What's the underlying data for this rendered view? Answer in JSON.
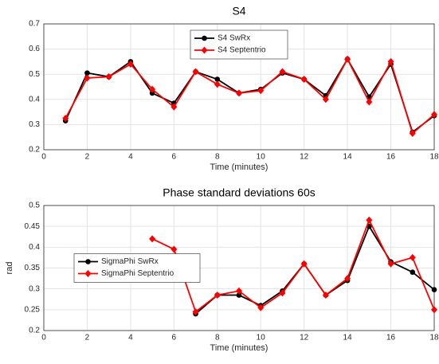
{
  "chart_data": [
    {
      "type": "line",
      "title": "S4",
      "x_label": "Time (minutes)",
      "x": [
        1,
        2,
        3,
        4,
        5,
        6,
        7,
        8,
        9,
        10,
        11,
        12,
        13,
        14,
        15,
        16,
        17,
        18
      ],
      "series": [
        {
          "name": "S4 SwRx",
          "color": "#000000",
          "marker": "circle",
          "values": [
            0.315,
            0.505,
            0.49,
            0.55,
            0.425,
            0.385,
            0.51,
            0.48,
            0.425,
            0.44,
            0.505,
            0.48,
            0.415,
            0.56,
            0.41,
            0.54,
            0.27,
            0.335
          ]
        },
        {
          "name": "S4 Septentrio",
          "color": "#ff0000",
          "marker": "diamond",
          "values": [
            0.325,
            0.485,
            0.49,
            0.54,
            0.44,
            0.37,
            0.51,
            0.46,
            0.425,
            0.435,
            0.51,
            0.48,
            0.4,
            0.56,
            0.39,
            0.55,
            0.265,
            0.34
          ]
        }
      ],
      "xlim": [
        0,
        18
      ],
      "xticks": [
        0,
        2,
        4,
        6,
        8,
        10,
        12,
        14,
        16,
        18
      ],
      "ylim": [
        0.2,
        0.7
      ],
      "yticks": [
        0.2,
        0.3,
        0.4,
        0.5,
        0.6,
        0.7
      ],
      "grid": true,
      "legend": "upper center"
    },
    {
      "type": "line",
      "title": "Phase standard deviations 60s",
      "x_label": "Time (minutes)",
      "y_label": "rad",
      "x": [
        1,
        2,
        3,
        4,
        5,
        6,
        7,
        8,
        9,
        10,
        11,
        12,
        13,
        14,
        15,
        16,
        17,
        18
      ],
      "series": [
        {
          "name": "SigmaPhi SwRx",
          "color": "#000000",
          "marker": "circle",
          "values": [
            null,
            null,
            null,
            null,
            null,
            null,
            0.24,
            0.285,
            0.285,
            0.26,
            0.295,
            0.36,
            0.285,
            0.32,
            0.45,
            0.365,
            0.34,
            0.298
          ]
        },
        {
          "name": "SigmaPhi Septentrio",
          "color": "#ff0000",
          "marker": "diamond",
          "values": [
            null,
            null,
            null,
            null,
            0.42,
            0.395,
            0.245,
            0.285,
            0.295,
            0.255,
            0.29,
            0.36,
            0.285,
            0.325,
            0.465,
            0.36,
            0.375,
            0.25
          ]
        }
      ],
      "xlim": [
        0,
        18
      ],
      "xticks": [
        0,
        2,
        4,
        6,
        8,
        10,
        12,
        14,
        16,
        18
      ],
      "ylim": [
        0.2,
        0.5
      ],
      "yticks": [
        0.2,
        0.25,
        0.3,
        0.35,
        0.4,
        0.45,
        0.5
      ],
      "grid": true,
      "legend": "center left"
    }
  ]
}
